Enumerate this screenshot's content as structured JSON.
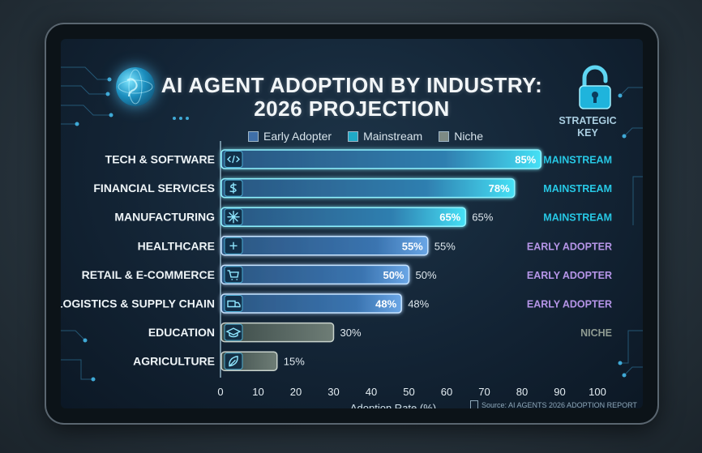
{
  "chart_data": {
    "type": "bar",
    "orientation": "horizontal",
    "title_line1": "AI AGENT ADOPTION BY INDUSTRY:",
    "title_line2": "2026 PROJECTION",
    "xlabel": "Adoption Rate (%)",
    "xlim": [
      0,
      100
    ],
    "xticks": [
      "0",
      "10",
      "20",
      "30",
      "40",
      "50",
      "60",
      "70",
      "80",
      "90",
      "100"
    ],
    "grid": false,
    "legend_position": "top",
    "legend": [
      {
        "label": "Early Adopter",
        "color": "#4f7fb8"
      },
      {
        "label": "Mainstream",
        "color": "#27c9e6"
      },
      {
        "label": "Niche",
        "color": "#8f9b92"
      }
    ],
    "categories": [
      "TECH & SOFTWARE",
      "FINANCIAL SERVICES",
      "MANUFACTURING",
      "HEALTHCARE",
      "RETAIL & E-COMMERCE",
      "LOGISTICS & SUPPLY CHAIN",
      "EDUCATION",
      "AGRICULTURE"
    ],
    "values": [
      85,
      78,
      65,
      55,
      50,
      48,
      30,
      15
    ],
    "bar_labels": [
      "85%",
      "78%",
      "65%",
      "55%",
      "50%",
      "48%",
      "",
      ""
    ],
    "outside_labels": [
      "",
      "",
      "65%",
      "55%",
      "50%",
      "48%",
      "30%",
      "15%"
    ],
    "segments": [
      "MAINSTREAM",
      "MAINSTREAM",
      "MAINSTREAM",
      "EARLY ADOPTER",
      "EARLY ADOPTER",
      "EARLY ADOPTER",
      "NICHE",
      ""
    ],
    "icons": [
      "code-icon",
      "dollar-icon",
      "gear-icon",
      "medical-kit-icon",
      "shopping-cart-icon",
      "truck-icon",
      "graduation-cap-icon",
      "leaf-icon"
    ],
    "colors": {
      "mainstream": "#27c9e6",
      "early_adopter": "#b695e8",
      "niche": "#8f9b92",
      "early_adopter_bar": "#4f7fb8"
    }
  },
  "strategic_key": "STRATEGIC KEY",
  "source": "Source: AI AGENTS 2026 ADOPTION REPORT"
}
